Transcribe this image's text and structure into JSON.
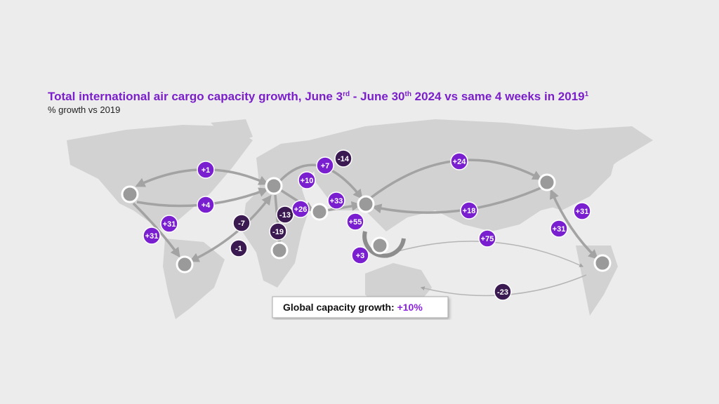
{
  "header": {
    "title": [
      "Total international air cargo capacity growth, June 3",
      "rd",
      " - June 30",
      "th",
      " 2024 vs same 4 weeks in 2019",
      "1"
    ],
    "subtitle": "% growth vs 2019"
  },
  "badges": [
    {
      "label": "+1"
    },
    {
      "label": "+4"
    },
    {
      "label": "+31"
    },
    {
      "label": "+31"
    },
    {
      "label": "-7"
    },
    {
      "label": "-1"
    },
    {
      "label": "+10"
    },
    {
      "label": "+7"
    },
    {
      "label": "-14"
    },
    {
      "label": "-13"
    },
    {
      "label": "+26"
    },
    {
      "label": "+33"
    },
    {
      "label": "-19"
    },
    {
      "label": "+55"
    },
    {
      "label": "+3"
    },
    {
      "label": "+24"
    },
    {
      "label": "+18"
    },
    {
      "label": "+75"
    },
    {
      "label": "+31"
    },
    {
      "label": "+31"
    },
    {
      "label": "-23"
    }
  ],
  "global": {
    "label": "Global capacity growth: ",
    "value": "+10%"
  }
}
